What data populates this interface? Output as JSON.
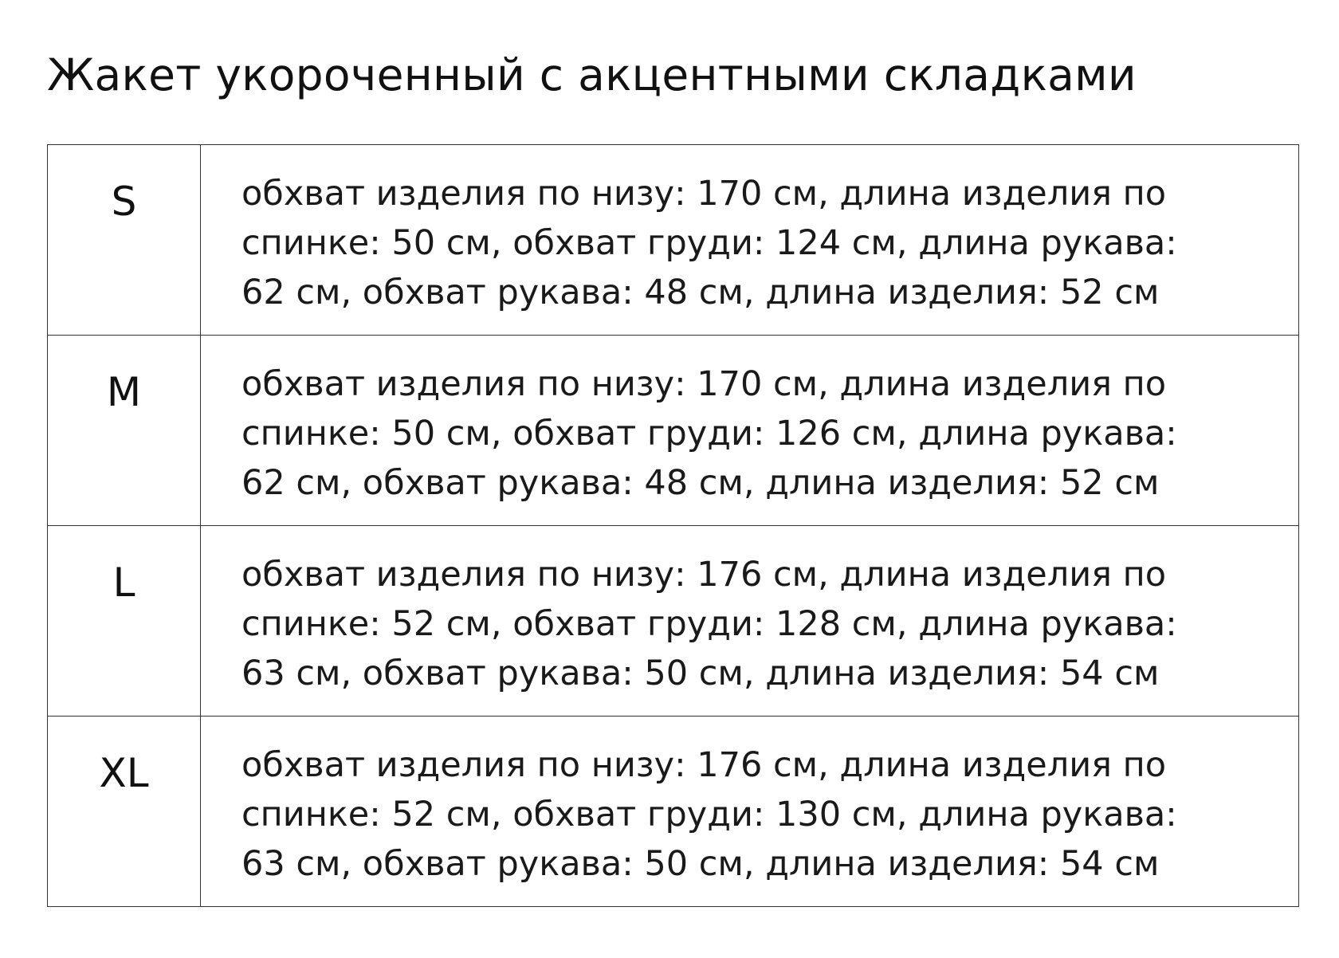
{
  "title": "Жакет укороченный с акцентными складками",
  "rows": [
    {
      "size": "S",
      "lines": [
        "обхват изделия по низу: 170 см, длина изделия по",
        "спинке: 50 см, обхват груди: 124 см, длина рукава:",
        "62 см, обхват рукава: 48 см, длина изделия: 52 см"
      ]
    },
    {
      "size": "M",
      "lines": [
        "обхват изделия по низу: 170 см, длина изделия по",
        "спинке: 50 см, обхват груди: 126 см, длина рукава:",
        "62 см, обхват рукава: 48 см, длина изделия: 52 см"
      ]
    },
    {
      "size": "L",
      "lines": [
        "обхват изделия по низу: 176 см, длина изделия по",
        "спинке: 52 см, обхват груди: 128 см, длина рукава:",
        "63 см, обхват рукава: 50 см, длина изделия: 54 см"
      ]
    },
    {
      "size": "XL",
      "lines": [
        "обхват изделия по низу: 176 см, длина изделия по",
        "спинке: 52 см, обхват груди: 130 см, длина рукава:",
        "63 см, обхват рукава: 50 см, длина изделия: 54 см"
      ]
    }
  ]
}
